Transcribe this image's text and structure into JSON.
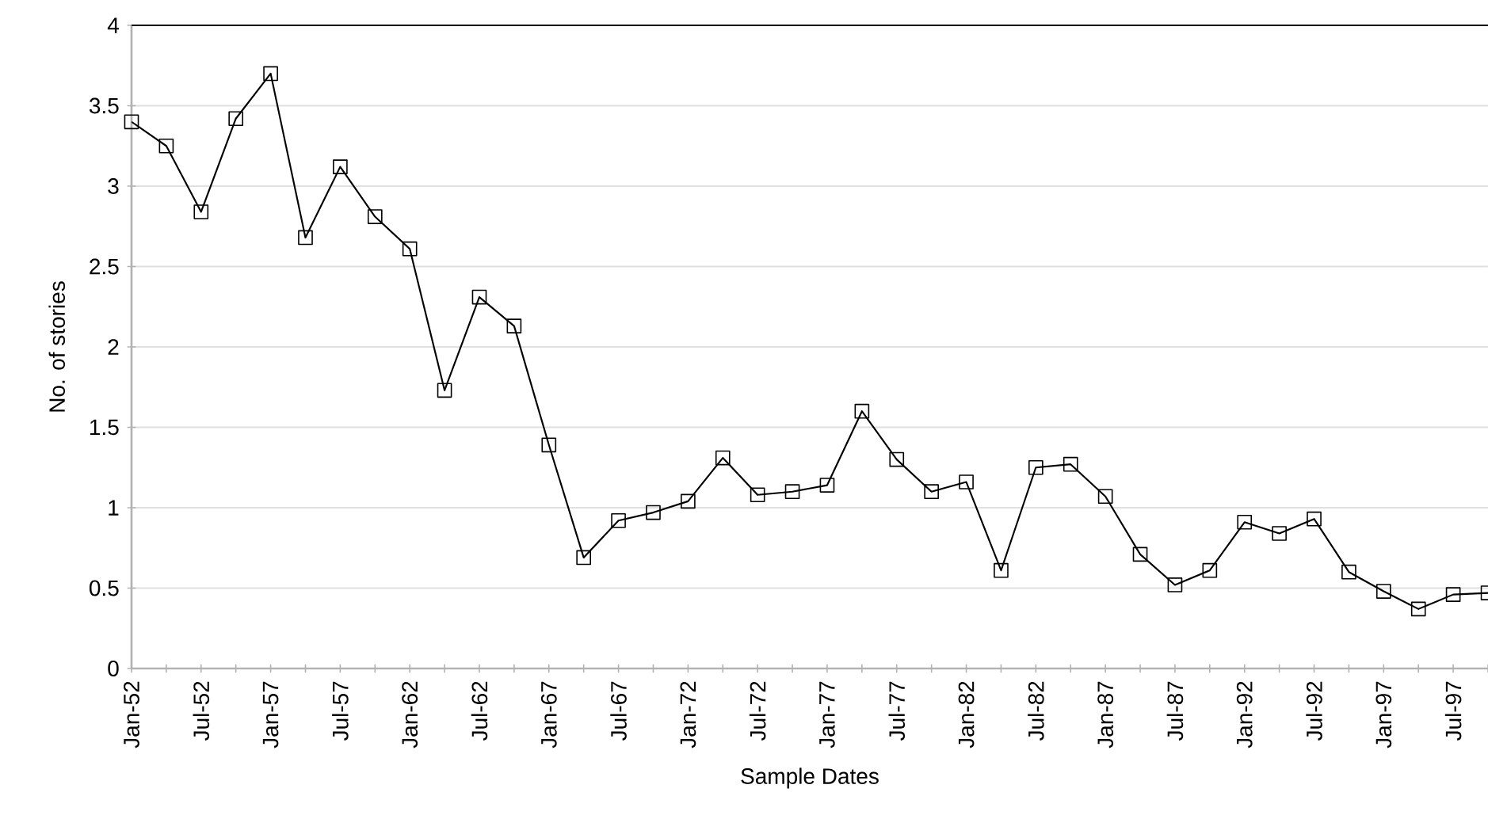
{
  "chart_data": {
    "type": "line",
    "xlabel": "Sample Dates",
    "ylabel": "No. of stories",
    "categories": [
      "Jan-52",
      null,
      "Jul-52",
      null,
      "Jan-57",
      null,
      "Jul-57",
      null,
      "Jan-62",
      null,
      "Jul-62",
      null,
      "Jan-67",
      null,
      "Jul-67",
      null,
      "Jan-72",
      null,
      "Jul-72",
      null,
      "Jan-77",
      null,
      "Jul-77",
      null,
      "Jan-82",
      null,
      "Jul-82",
      null,
      "Jan-87",
      null,
      "Jul-87",
      null,
      "Jan-92",
      null,
      "Jul-92",
      null,
      "Jan-97",
      null,
      "Jul-97",
      null
    ],
    "series": [
      {
        "color": "#000000",
        "values": [
          3.4,
          3.25,
          2.84,
          3.42,
          3.7,
          2.68,
          3.12,
          2.81,
          2.61,
          1.73,
          2.31,
          2.13,
          1.39,
          0.69,
          0.92,
          0.97,
          1.04,
          1.31,
          1.08,
          1.1,
          1.14,
          1.6,
          1.3,
          1.1,
          1.16,
          0.61,
          1.25,
          1.27,
          1.07,
          0.71,
          0.52,
          0.61,
          0.91,
          0.84,
          0.93,
          0.6,
          0.48,
          0.37,
          0.46,
          0.47
        ]
      }
    ],
    "ylim": [
      0,
      4
    ],
    "yticks": [
      0,
      0.5,
      1,
      1.5,
      2,
      2.5,
      3,
      3.5,
      4
    ],
    "grid": "y",
    "marker": "square",
    "line_style": "solid"
  }
}
